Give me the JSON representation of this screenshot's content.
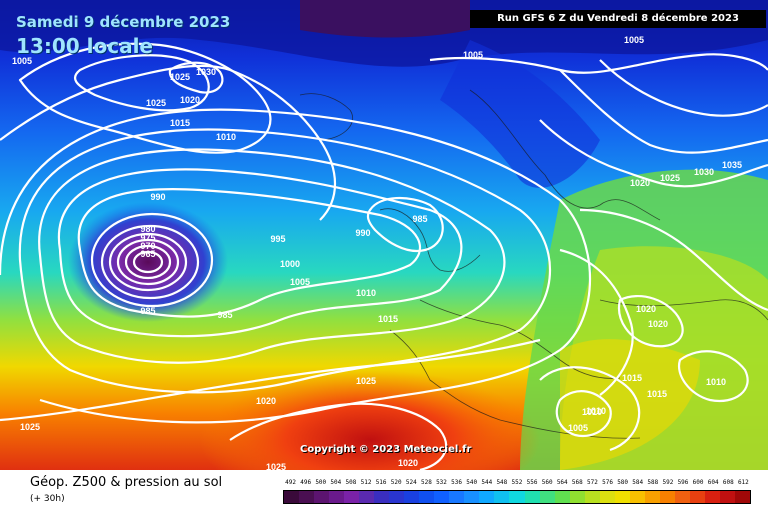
{
  "header": {
    "date": "Samedi 9 décembre 2023",
    "time": "13:00 locale",
    "run": "Run GFS 6 Z du Vendredi 8 décembre 2023"
  },
  "copyright": "Copyright © 2023 Meteociel.fr",
  "footer": {
    "title": "Géop. Z500 & pression au sol",
    "subtitle": "(+ 30h)"
  },
  "isobar_labels": [
    "1005",
    "1025",
    "1030",
    "1025",
    "1020",
    "1015",
    "1010",
    "1005",
    "990",
    "980",
    "975",
    "970",
    "965",
    "995",
    "1000",
    "1005",
    "985",
    "985",
    "990",
    "985",
    "1010",
    "1015",
    "1025",
    "1020",
    "1025",
    "1025",
    "1020",
    "1010",
    "1005",
    "1020",
    "1025",
    "1030",
    "1035",
    "1020",
    "1020",
    "1015",
    "1015",
    "1010",
    "1010",
    "1005"
  ],
  "scale": {
    "unit_ticks": [
      "492",
      "496",
      "500",
      "504",
      "508",
      "512",
      "516",
      "520",
      "524",
      "528",
      "532",
      "536",
      "540",
      "544",
      "548",
      "552",
      "556",
      "560",
      "564",
      "568",
      "572",
      "576",
      "580",
      "584",
      "588",
      "592",
      "596",
      "600",
      "604",
      "608",
      "612"
    ],
    "colors": [
      "#3a0a3a",
      "#4a0f52",
      "#5c1470",
      "#6a1a8c",
      "#7a22a8",
      "#5a2ab0",
      "#3a2ec0",
      "#2a35d0",
      "#1a40e0",
      "#1050f0",
      "#1060ff",
      "#1878ff",
      "#1890ff",
      "#10a8ff",
      "#10c0f0",
      "#10d8e0",
      "#20e0b0",
      "#40e080",
      "#60e050",
      "#90e030",
      "#b8e020",
      "#dce010",
      "#f0e000",
      "#f8c000",
      "#f8a000",
      "#f88000",
      "#f06010",
      "#e84010",
      "#d82010",
      "#c01010",
      "#a00808"
    ]
  }
}
